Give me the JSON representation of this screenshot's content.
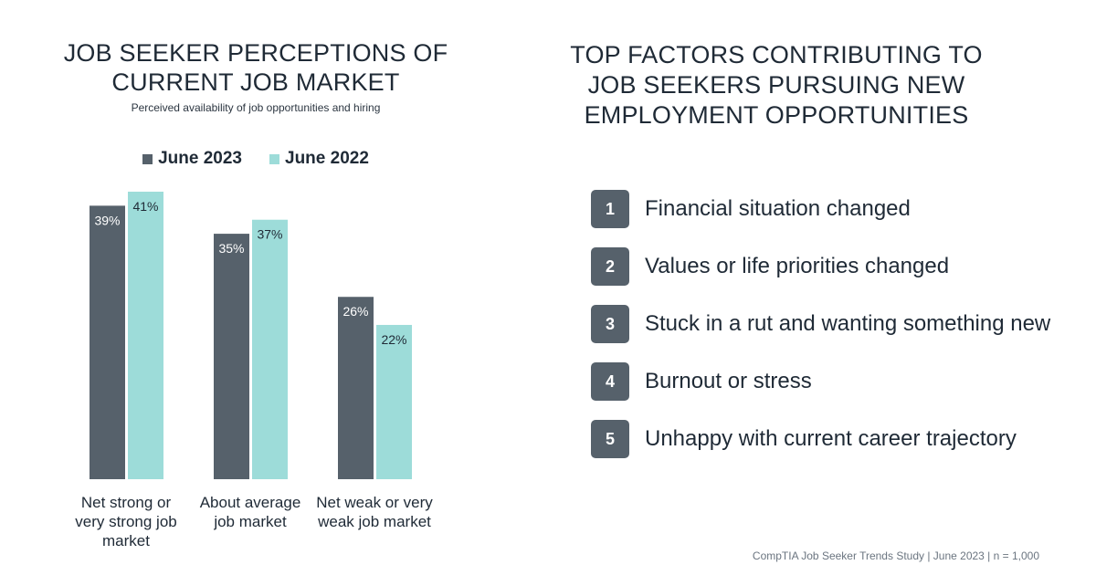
{
  "left_panel": {
    "title_line1": "JOB SEEKER PERCEPTIONS OF",
    "title_line2": "CURRENT JOB MARKET",
    "subtitle": "Perceived availability of job opportunities and hiring"
  },
  "colors": {
    "june_2023": "#56616b",
    "june_2022": "#9ddcd9",
    "badge": "#56616b"
  },
  "chart_data": {
    "type": "bar",
    "categories": [
      [
        "Net strong or",
        "very strong job",
        "market"
      ],
      [
        "About average",
        "job market"
      ],
      [
        "Net weak or very",
        "weak job market"
      ]
    ],
    "series": [
      {
        "name": "June 2023",
        "values": [
          39,
          35,
          26
        ],
        "labels": [
          "39%",
          "35%",
          "26%"
        ],
        "color": "#56616b"
      },
      {
        "name": "June 2022",
        "values": [
          41,
          37,
          22
        ],
        "labels": [
          "41%",
          "37%",
          "22%"
        ],
        "color": "#9ddcd9"
      }
    ],
    "ylim": [
      0,
      41
    ],
    "grid": false,
    "legend_position": "top"
  },
  "right_panel": {
    "title_line1": "TOP FACTORS CONTRIBUTING TO",
    "title_line2": "JOB SEEKERS PURSUING NEW",
    "title_line3": "EMPLOYMENT OPPORTUNITIES",
    "factors": [
      {
        "rank": "1",
        "text": "Financial situation changed"
      },
      {
        "rank": "2",
        "text": "Values or life priorities changed"
      },
      {
        "rank": "3",
        "text": "Stuck in a rut and wanting something new"
      },
      {
        "rank": "4",
        "text": "Burnout or stress"
      },
      {
        "rank": "5",
        "text": "Unhappy with current career trajectory"
      }
    ]
  },
  "source": "CompTIA Job Seeker Trends Study | June 2023 | n = 1,000"
}
